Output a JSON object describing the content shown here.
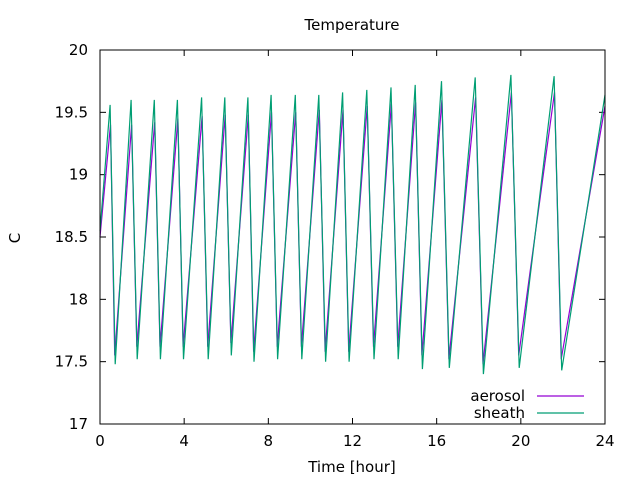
{
  "chart_data": {
    "type": "line",
    "title": "Temperature",
    "xlabel": "Time [hour]",
    "ylabel": "C",
    "xlim": [
      0,
      24
    ],
    "ylim": [
      17,
      20
    ],
    "xticks": [
      0,
      4,
      8,
      12,
      16,
      20,
      24
    ],
    "yticks": [
      17,
      17.5,
      18,
      18.5,
      19,
      19.5,
      20
    ],
    "grid": false,
    "legend_position": "bottom-right",
    "series": [
      {
        "name": "aerosol",
        "color": "#9400d3",
        "points": [
          [
            0.0,
            18.5
          ],
          [
            0.5,
            19.4
          ],
          [
            0.7,
            17.55
          ],
          [
            1.5,
            19.4
          ],
          [
            1.75,
            17.62
          ],
          [
            2.6,
            19.42
          ],
          [
            2.85,
            17.62
          ],
          [
            3.7,
            19.45
          ],
          [
            3.95,
            17.62
          ],
          [
            4.85,
            19.47
          ],
          [
            5.12,
            17.62
          ],
          [
            5.95,
            19.48
          ],
          [
            6.22,
            17.65
          ],
          [
            7.05,
            19.48
          ],
          [
            7.3,
            17.58
          ],
          [
            8.15,
            19.5
          ],
          [
            8.42,
            17.62
          ],
          [
            9.3,
            19.5
          ],
          [
            9.57,
            17.62
          ],
          [
            10.42,
            19.52
          ],
          [
            10.7,
            17.58
          ],
          [
            11.55,
            19.52
          ],
          [
            11.82,
            17.58
          ],
          [
            12.7,
            19.55
          ],
          [
            13.0,
            17.62
          ],
          [
            13.85,
            19.57
          ],
          [
            14.15,
            17.62
          ],
          [
            15.0,
            19.58
          ],
          [
            15.3,
            17.55
          ],
          [
            16.25,
            19.6
          ],
          [
            16.58,
            17.52
          ],
          [
            17.85,
            19.62
          ],
          [
            18.2,
            17.48
          ],
          [
            19.55,
            19.66
          ],
          [
            19.9,
            17.55
          ],
          [
            21.6,
            19.66
          ],
          [
            21.92,
            17.52
          ],
          [
            24.0,
            19.55
          ]
        ]
      },
      {
        "name": "sheath",
        "color": "#009e73",
        "points": [
          [
            0.0,
            18.55
          ],
          [
            0.48,
            19.56
          ],
          [
            0.72,
            17.48
          ],
          [
            1.48,
            19.6
          ],
          [
            1.77,
            17.52
          ],
          [
            2.58,
            19.6
          ],
          [
            2.87,
            17.52
          ],
          [
            3.68,
            19.6
          ],
          [
            3.97,
            17.52
          ],
          [
            4.83,
            19.62
          ],
          [
            5.14,
            17.52
          ],
          [
            5.93,
            19.62
          ],
          [
            6.24,
            17.55
          ],
          [
            7.03,
            19.62
          ],
          [
            7.32,
            17.5
          ],
          [
            8.13,
            19.64
          ],
          [
            8.44,
            17.52
          ],
          [
            9.28,
            19.64
          ],
          [
            9.59,
            17.52
          ],
          [
            10.4,
            19.64
          ],
          [
            10.72,
            17.5
          ],
          [
            11.53,
            19.66
          ],
          [
            11.84,
            17.5
          ],
          [
            12.68,
            19.68
          ],
          [
            13.02,
            17.52
          ],
          [
            13.83,
            19.7
          ],
          [
            14.17,
            17.52
          ],
          [
            14.98,
            19.72
          ],
          [
            15.32,
            17.44
          ],
          [
            16.23,
            19.75
          ],
          [
            16.6,
            17.45
          ],
          [
            17.83,
            19.78
          ],
          [
            18.22,
            17.4
          ],
          [
            19.53,
            19.8
          ],
          [
            19.92,
            17.45
          ],
          [
            21.58,
            19.79
          ],
          [
            21.94,
            17.43
          ],
          [
            24.0,
            19.64
          ]
        ]
      }
    ]
  }
}
